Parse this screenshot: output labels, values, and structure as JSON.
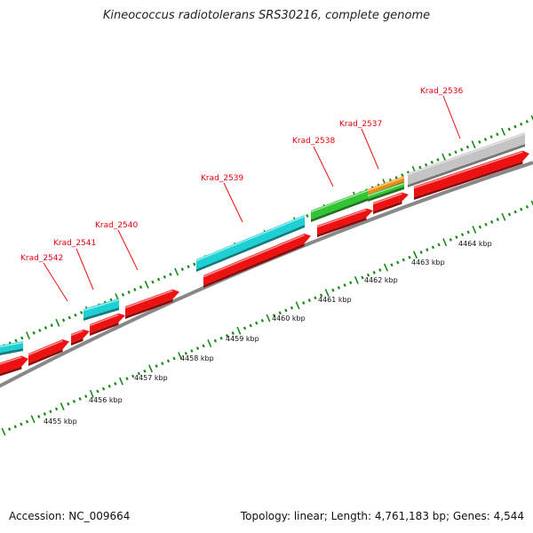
{
  "title": "Kineococcus radiotolerans SRS30216, complete genome",
  "footer": {
    "accession": "Accession: NC_009664",
    "summary": "Topology: linear; Length: 4,761,183 bp; Genes: 4,544"
  },
  "colors": {
    "cds_red": "#ee1111",
    "cyan": "#1cd0d4",
    "green": "#33c433",
    "orange": "#f08c10",
    "gray": "#c4c4c4",
    "backbone": "#888888",
    "ticks": "#1a8a1a"
  },
  "gene_labels": [
    {
      "text": "Krad_2536"
    },
    {
      "text": "Krad_2537"
    },
    {
      "text": "Krad_2538"
    },
    {
      "text": "Krad_2539"
    },
    {
      "text": "Krad_2540"
    },
    {
      "text": "Krad_2541"
    },
    {
      "text": "Krad_2542"
    }
  ],
  "kbp_labels": [
    "4455 kbp",
    "4456 kbp",
    "4457 kbp",
    "4458 kbp",
    "4459 kbp",
    "4460 kbp",
    "4461 kbp",
    "4462 kbp",
    "4463 kbp",
    "4464 kbp"
  ]
}
